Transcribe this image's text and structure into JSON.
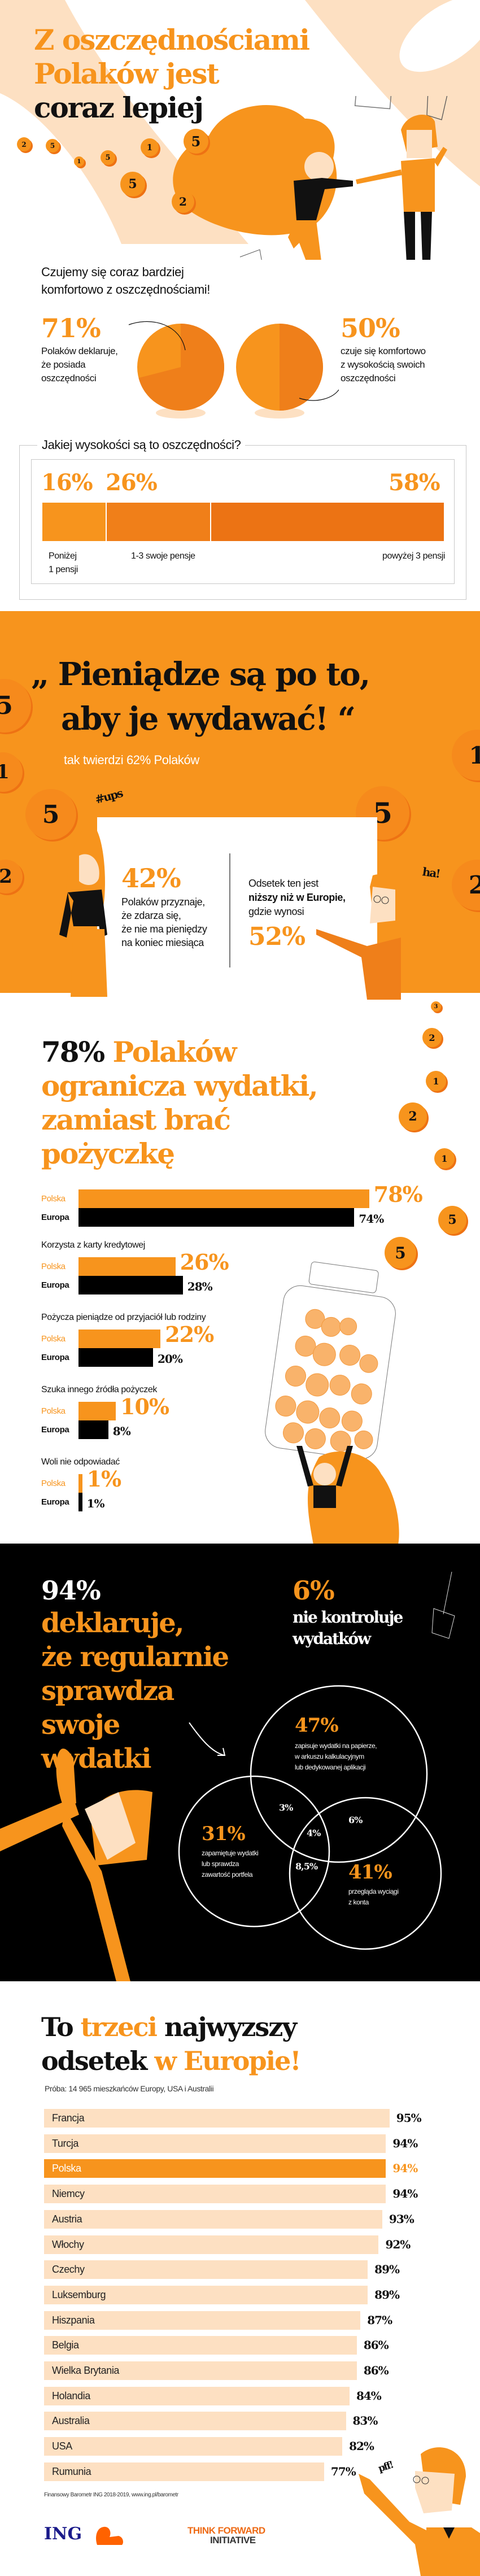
{
  "colors": {
    "orange": "#f7941d",
    "dark_orange": "#ee7213",
    "peach": "#fde0c2",
    "black": "#000000"
  },
  "hero": {
    "title_line1": "Z oszczędnościami",
    "title_line2": "Polaków jest",
    "title_line3": "coraz lepiej",
    "coins": [
      "2",
      "5",
      "1",
      "5",
      "1",
      "5",
      "5",
      "2"
    ]
  },
  "comfort": {
    "heading_line1": "Czujemy się coraz bardziej",
    "heading_line2": "komfortowo z oszczędnościami!",
    "left": {
      "value": "71%",
      "fraction": 0.71,
      "line1": "Polaków deklaruje,",
      "line2": "że posiada",
      "line3": "oszczędności"
    },
    "right": {
      "value": "50%",
      "fraction": 0.5,
      "line1": "czuje się komfortowo",
      "line2": "z wysokością swoich",
      "line3": "oszczędności"
    }
  },
  "amount": {
    "title": "Jakiej wysokości są to oszczędności?",
    "segments": [
      {
        "value": "16%",
        "share": 16,
        "label_line1": "Poniżej",
        "label_line2": "1 pensji"
      },
      {
        "value": "26%",
        "share": 26,
        "label_line1": "1-3  swoje pensje",
        "label_line2": ""
      },
      {
        "value": "58%",
        "share": 58,
        "label_line1": "powyżej 3 pensji",
        "label_line2": ""
      }
    ]
  },
  "spend": {
    "quote_line1": "„ Pieniądze są po to,",
    "quote_line2": "aby je wydawać! “",
    "sub": "tak twierdzi 62% Polaków",
    "ups": "#ups",
    "ha": "ha!",
    "left_value": "42%",
    "left_line1": "Polaków przyznaje,",
    "left_line2": "że zdarza się,",
    "left_line3": "że nie ma pieniędzy",
    "left_line4": "na koniec miesiąca",
    "right_line1": "Odsetek ten jest",
    "right_line2": "niższy niż w Europie,",
    "right_line3": "gdzie wynosi",
    "right_value": "52%",
    "coins": [
      "5",
      "1",
      "5",
      "2",
      "1",
      "5",
      "2"
    ]
  },
  "limits": {
    "head_pct": "78%",
    "head_line1": "Polaków",
    "head_line2": "ogranicza wydatki,",
    "head_line3": "zamiast brać",
    "head_line4": "pożyczkę",
    "polska_label": "Polska",
    "europa_label": "Europa",
    "groups": [
      {
        "title": "",
        "polska": 78,
        "europa": 74,
        "polska_text": "78%",
        "europa_text": "74%"
      },
      {
        "title": "Korzysta z karty kredytowej",
        "polska": 26,
        "europa": 28,
        "polska_text": "26%",
        "europa_text": "28%"
      },
      {
        "title": "Pożycza pieniądze od przyjaciół lub rodziny",
        "polska": 22,
        "europa": 20,
        "polska_text": "22%",
        "europa_text": "20%"
      },
      {
        "title": "Szuka innego źródła pożyczek",
        "polska": 10,
        "europa": 8,
        "polska_text": "10%",
        "europa_text": "8%"
      },
      {
        "title": "Woli nie odpowiadać",
        "polska": 1,
        "europa": 1,
        "polska_text": "1%",
        "europa_text": "1%"
      }
    ],
    "coins": [
      "3",
      "2",
      "1",
      "2",
      "1",
      "5",
      "5",
      "2"
    ]
  },
  "control": {
    "big_pct": "94%",
    "line1": "deklaruje,",
    "line2": "że regularnie",
    "line3": "sprawdza",
    "line4": "swoje",
    "line5": "wydatki",
    "no_pct": "6%",
    "no_line1": "nie kontroluje",
    "no_line2": "wydatków",
    "venn": {
      "a_value": "47%",
      "a_line1": "zapisuje wydatki na papierze,",
      "a_line2": "w arkuszu kalkulacyjnym",
      "a_line3": "lub dedykowanej aplikacji",
      "b_value": "31%",
      "b_line1": "zapamiętuje wydatki",
      "b_line2": "lub sprawdza",
      "b_line3": "zawartość portfela",
      "c_value": "41%",
      "c_line1": "przegląda wyciągi",
      "c_line2": "z konta",
      "ab": "3%",
      "ac": "6%",
      "abc": "4%",
      "bc": "8,5%"
    }
  },
  "ranking": {
    "title_w1": "To",
    "title_w2": "trzeci",
    "title_w3": "najwyzszy",
    "title_w4": "odsetek",
    "title_w5": "w Europie!",
    "sample": "Próba: 14 965 mieszkańców Europy, USA i Australii",
    "rows": [
      {
        "country": "Francja",
        "value": 95,
        "text": "95%"
      },
      {
        "country": "Turcja",
        "value": 94,
        "text": "94%"
      },
      {
        "country": "Polska",
        "value": 94,
        "text": "94%",
        "highlight": true
      },
      {
        "country": "Niemcy",
        "value": 94,
        "text": "94%"
      },
      {
        "country": "Austria",
        "value": 93,
        "text": "93%"
      },
      {
        "country": "Włochy",
        "value": 92,
        "text": "92%"
      },
      {
        "country": "Czechy",
        "value": 89,
        "text": "89%"
      },
      {
        "country": "Luksemburg",
        "value": 89,
        "text": "89%"
      },
      {
        "country": "Hiszpania",
        "value": 87,
        "text": "87%"
      },
      {
        "country": "Belgia",
        "value": 86,
        "text": "86%"
      },
      {
        "country": "Wielka Brytania",
        "value": 86,
        "text": "86%"
      },
      {
        "country": "Holandia",
        "value": 84,
        "text": "84%"
      },
      {
        "country": "Australia",
        "value": 83,
        "text": "83%"
      },
      {
        "country": "USA",
        "value": 82,
        "text": "82%"
      },
      {
        "country": "Rumunia",
        "value": 77,
        "text": "77%"
      }
    ],
    "pff": "pff!",
    "source": "Finansowy Barometr ING 2018-2019, www.ing.pl/barometr"
  },
  "footer": {
    "ing_logo": "ING",
    "tfi_line1": "THINK FORWARD",
    "tfi_line2": "INITIATIVE"
  }
}
